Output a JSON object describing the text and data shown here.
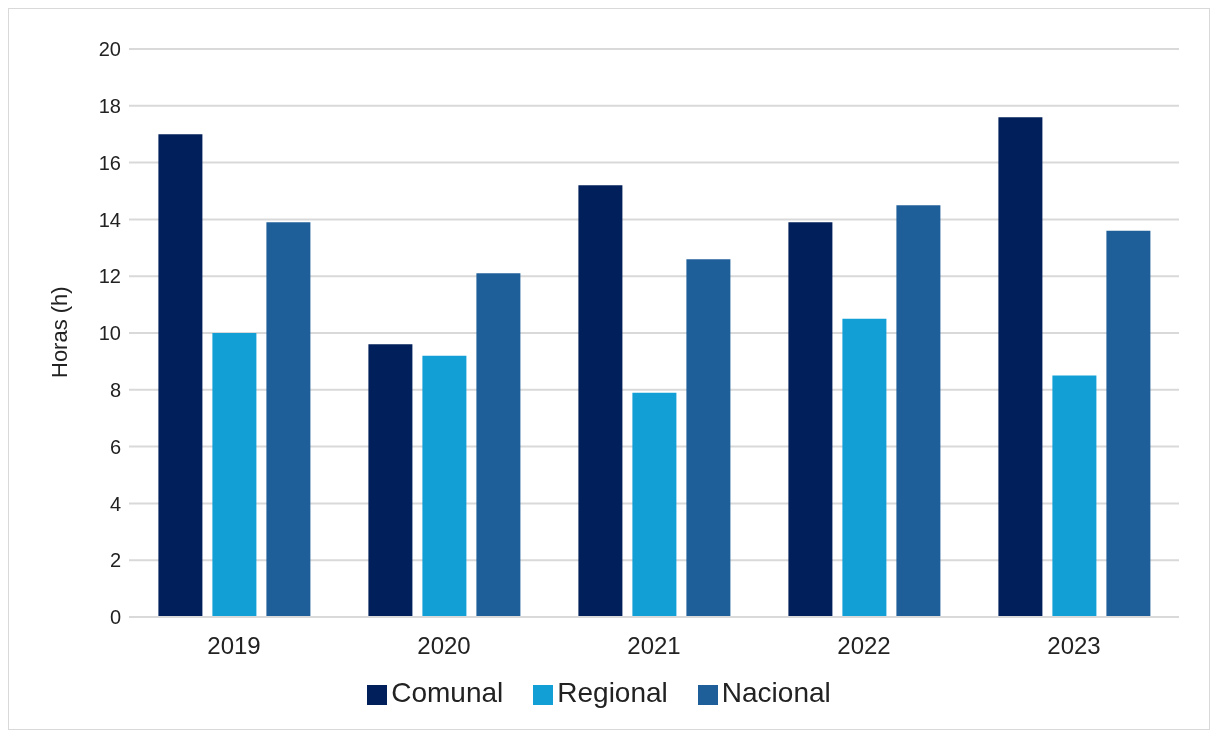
{
  "chart_data": {
    "type": "bar",
    "ylabel": "Horas (h)",
    "categories": [
      "2019",
      "2020",
      "2021",
      "2022",
      "2023"
    ],
    "series": [
      {
        "name": "Comunal",
        "color": "#001f5b",
        "values": [
          17.0,
          9.6,
          15.2,
          13.9,
          17.6
        ]
      },
      {
        "name": "Regional",
        "color": "#119fd6",
        "values": [
          10.0,
          9.2,
          7.9,
          10.5,
          8.5
        ]
      },
      {
        "name": "Nacional",
        "color": "#1f5f99",
        "values": [
          13.9,
          12.1,
          12.6,
          14.5,
          13.6
        ]
      }
    ],
    "ylim": [
      0,
      20
    ],
    "yticks": [
      0,
      2,
      4,
      6,
      8,
      10,
      12,
      14,
      16,
      18,
      20
    ],
    "grid": "y",
    "legend": "bottom"
  }
}
